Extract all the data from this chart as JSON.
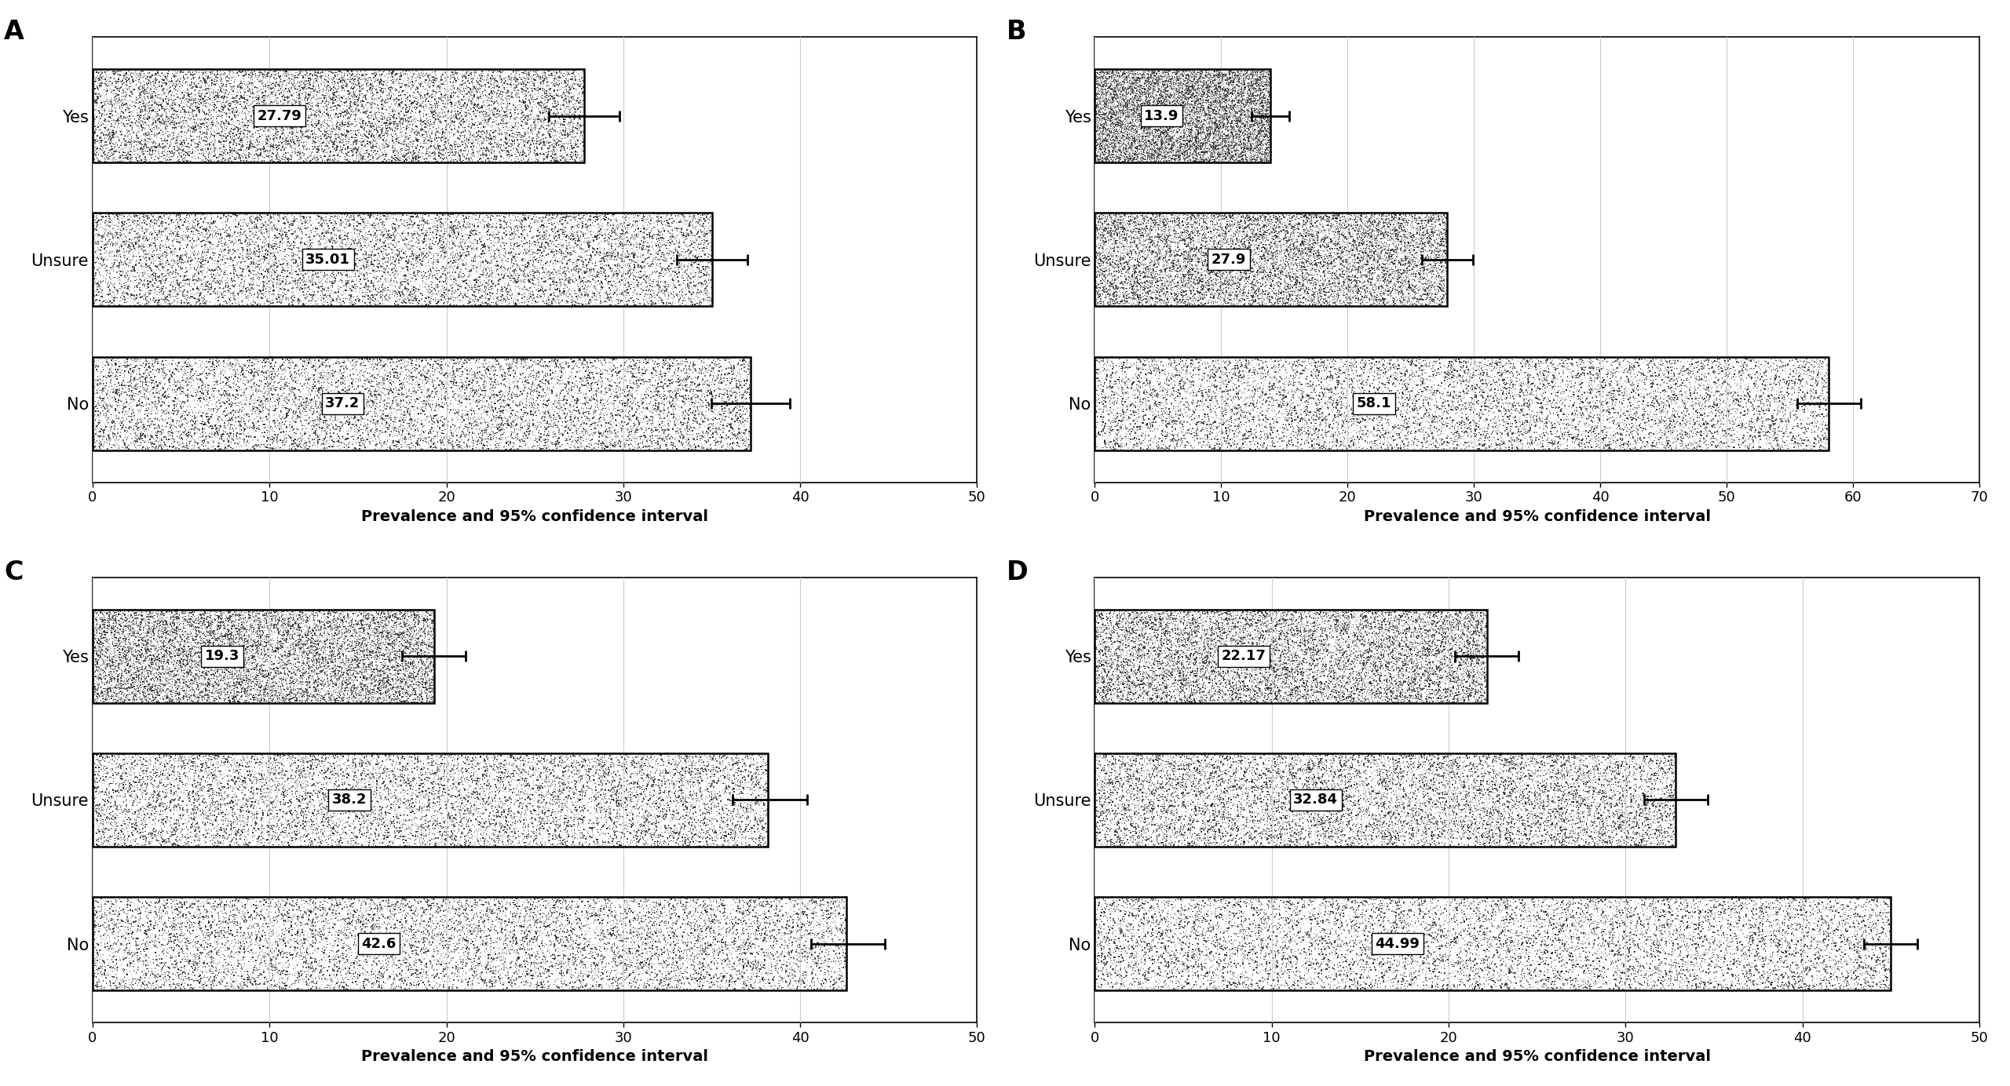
{
  "panels": [
    {
      "label": "A",
      "categories": [
        "Yes",
        "Unsure",
        "No"
      ],
      "values": [
        27.79,
        35.01,
        37.2
      ],
      "xerr_low": [
        2.0,
        2.0,
        2.2
      ],
      "xerr_high": [
        2.0,
        2.0,
        2.2
      ],
      "xlim": [
        0,
        50
      ],
      "xticks": [
        0,
        10,
        20,
        30,
        40,
        50
      ]
    },
    {
      "label": "B",
      "categories": [
        "Yes",
        "Unsure",
        "No"
      ],
      "values": [
        13.9,
        27.9,
        58.1
      ],
      "xerr_low": [
        1.5,
        2.0,
        2.5
      ],
      "xerr_high": [
        1.5,
        2.0,
        2.5
      ],
      "xlim": [
        0,
        70
      ],
      "xticks": [
        0,
        10,
        20,
        30,
        40,
        50,
        60,
        70
      ]
    },
    {
      "label": "C",
      "categories": [
        "Yes",
        "Unsure",
        "No"
      ],
      "values": [
        19.3,
        38.2,
        42.6
      ],
      "xerr_low": [
        1.8,
        2.0,
        2.0
      ],
      "xerr_high": [
        1.8,
        2.2,
        2.2
      ],
      "xlim": [
        0,
        50
      ],
      "xticks": [
        0,
        10,
        20,
        30,
        40,
        50
      ]
    },
    {
      "label": "D",
      "categories": [
        "Yes",
        "Unsure",
        "No"
      ],
      "values": [
        22.17,
        32.84,
        44.99
      ],
      "xerr_low": [
        1.8,
        1.8,
        1.5
      ],
      "xerr_high": [
        1.8,
        1.8,
        1.5
      ],
      "xlim": [
        0,
        50
      ],
      "xticks": [
        0,
        10,
        20,
        30,
        40,
        50
      ]
    }
  ],
  "xlabel": "Prevalence and 95% confidence interval",
  "bar_height": 0.65,
  "background_color": "#ffffff",
  "label_fontsize": 24,
  "tick_fontsize": 13,
  "xlabel_fontsize": 14,
  "value_fontsize": 13
}
